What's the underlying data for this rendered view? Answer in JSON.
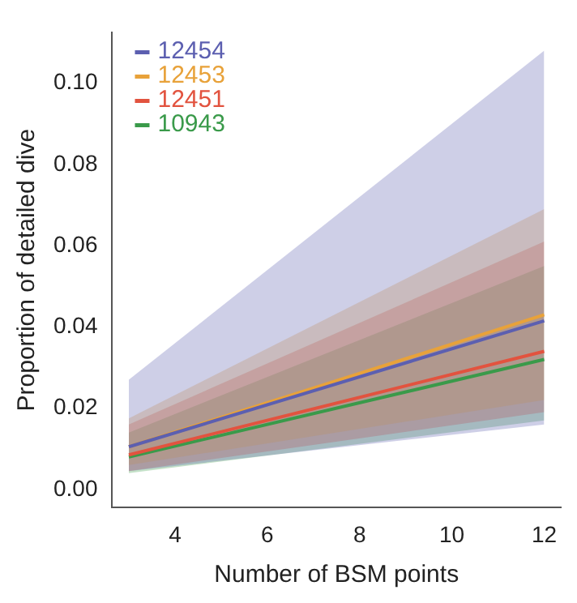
{
  "chart_data": {
    "type": "line",
    "xlabel": "Number of BSM points",
    "ylabel": "Proportion of detailed dive",
    "x": [
      3,
      12
    ],
    "series": [
      {
        "name": "12454",
        "color": "#5c5fb0",
        "values": [
          0.0105,
          0.0415
        ],
        "lower": [
          0.0045,
          0.016
        ],
        "upper": [
          0.027,
          0.108
        ]
      },
      {
        "name": "12453",
        "color": "#e8a23a",
        "values": [
          0.0105,
          0.043
        ],
        "lower": [
          0.006,
          0.022
        ],
        "upper": [
          0.0175,
          0.069
        ]
      },
      {
        "name": "12451",
        "color": "#e2533f",
        "values": [
          0.0085,
          0.034
        ],
        "lower": [
          0.0045,
          0.019
        ],
        "upper": [
          0.016,
          0.061
        ]
      },
      {
        "name": "10943",
        "color": "#3a9a4a",
        "values": [
          0.008,
          0.032
        ],
        "lower": [
          0.004,
          0.017
        ],
        "upper": [
          0.014,
          0.055
        ]
      }
    ],
    "xlim": [
      2.64,
      12.36
    ],
    "xticks": [
      4,
      6,
      8,
      10,
      12
    ],
    "ylim": [
      -0.0045,
      0.1125
    ],
    "yticks": [
      {
        "value": 0,
        "label": "0.00"
      },
      {
        "value": 0.02,
        "label": "0.02"
      },
      {
        "value": 0.04,
        "label": "0.04"
      },
      {
        "value": 0.06,
        "label": "0.06"
      },
      {
        "value": 0.08,
        "label": "0.08"
      },
      {
        "value": 0.1,
        "label": "0.10"
      }
    ],
    "grid": false,
    "legend": "top left",
    "marker": "none",
    "line_style": "solid"
  }
}
